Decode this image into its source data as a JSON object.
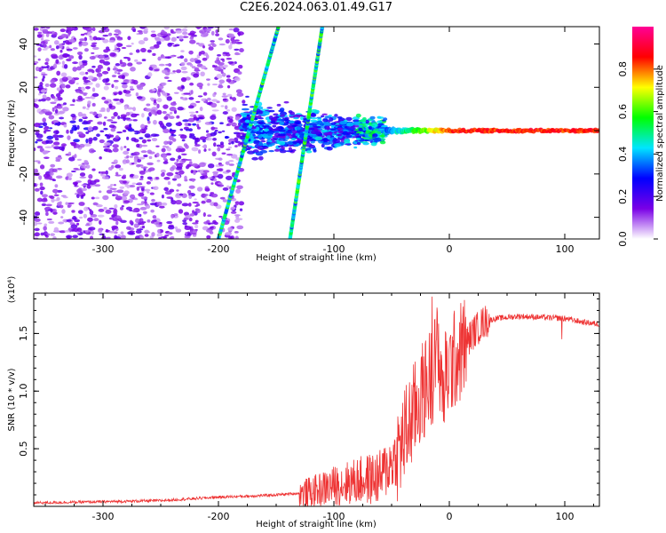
{
  "title": "C2E6.2024.063.01.49.G17",
  "chart_data": [
    {
      "type": "heatmap",
      "xlabel": "Height of straight line (km)",
      "ylabel": "Frequency (Hz)",
      "xlim": [
        -360,
        130
      ],
      "ylim": [
        -50,
        48
      ],
      "xticks": [
        -300,
        -200,
        -100,
        0,
        100
      ],
      "yticks": [
        -40,
        -20,
        0,
        20,
        40
      ],
      "colorbar": {
        "label": "Normalized spectral amplitude",
        "range": [
          0,
          1
        ],
        "ticks": [
          "0.0",
          "0.2",
          "0.4",
          "0.6",
          "0.8"
        ],
        "colors": [
          "#ffffff",
          "#7a00e6",
          "#0000ff",
          "#00e5ff",
          "#00ff00",
          "#ffff00",
          "#ff0000",
          "#ff0096"
        ]
      },
      "features": {
        "carrier_line": {
          "x_from": -55,
          "x_to": 130,
          "frequency": 0,
          "amplitude": 0.85
        },
        "broad_component": {
          "x_from": -180,
          "x_to": -55,
          "frequency_center": 0,
          "frequency_spread": 12,
          "amplitude": 0.3
        },
        "diagonal_lines": [
          {
            "x1": -200,
            "y1": -50,
            "x2": -148,
            "y2": 48
          },
          {
            "x1": -138,
            "y1": -50,
            "x2": -110,
            "y2": 48
          }
        ],
        "noise_region": {
          "x_from": -360,
          "x_to": -200,
          "amplitude": 0.1
        }
      }
    },
    {
      "type": "line",
      "xlabel": "Height of straight line (km)",
      "ylabel": "SNR (10 * v/v)",
      "yunit": "(x10⁴)",
      "xlim": [
        -360,
        130
      ],
      "ylim": [
        0,
        1.85
      ],
      "xticks": [
        -300,
        -200,
        -100,
        0,
        100
      ],
      "yticks": [
        "0.5",
        "1.0",
        "1.5"
      ],
      "color": "#ee3333",
      "series": [
        {
          "x": [
            -360,
            -300,
            -250,
            -200,
            -170,
            -150,
            -120,
            -100,
            -80,
            -60,
            -45,
            -35,
            -25,
            -15,
            -10,
            -5,
            0,
            10,
            20,
            30,
            40,
            60,
            80,
            100,
            115,
            130
          ],
          "y": [
            0.03,
            0.04,
            0.05,
            0.08,
            0.09,
            0.1,
            0.12,
            0.18,
            0.22,
            0.25,
            0.45,
            0.7,
            0.95,
            1.15,
            1.35,
            1.05,
            1.2,
            1.35,
            1.5,
            1.6,
            1.63,
            1.65,
            1.64,
            1.63,
            1.6,
            1.58
          ]
        }
      ]
    }
  ]
}
